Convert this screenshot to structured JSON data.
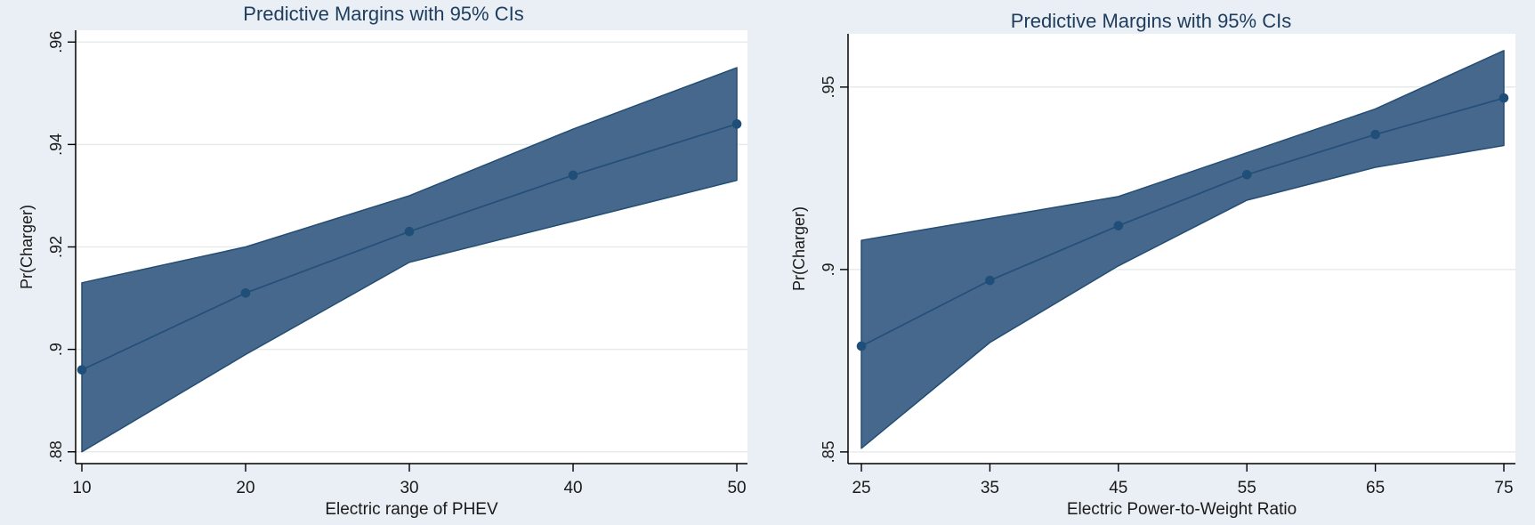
{
  "figure": {
    "description_note": "",
    "colors": {
      "background": "#e9eff4",
      "plot_background": "#ffffff",
      "gridline": "#e7ebec",
      "axis_line": "#000000",
      "tick_label": "#1a1a1a",
      "axis_title": "#1a1a1a",
      "chart_title": "#1e3c5e",
      "ci_band_fill": "#46688c",
      "ci_band_edge": "#244d74",
      "margin_line": "#234f7a",
      "marker_fill": "#1f4e79"
    }
  },
  "chart_data": [
    {
      "type": "line",
      "title": "Predictive Margins with 95% CIs",
      "xlabel": "Electric range of PHEV",
      "ylabel": "Pr(Charger)",
      "x": [
        10,
        20,
        30,
        40,
        50
      ],
      "series": [
        {
          "name": "Predictive margin",
          "values": [
            0.896,
            0.911,
            0.923,
            0.934,
            0.944
          ]
        },
        {
          "name": "95% CI lower",
          "values": [
            0.88,
            0.899,
            0.917,
            0.925,
            0.933
          ]
        },
        {
          "name": "95% CI upper",
          "values": [
            0.913,
            0.92,
            0.93,
            0.943,
            0.955
          ]
        }
      ],
      "xticks": {
        "values": [
          10,
          20,
          30,
          40,
          50
        ],
        "labels": [
          "10",
          "20",
          "30",
          "40",
          "50"
        ]
      },
      "yticks": {
        "values": [
          0.88,
          0.9,
          0.92,
          0.94,
          0.96
        ],
        "labels": [
          ".88",
          ".9",
          ".92",
          ".94",
          ".96"
        ]
      },
      "xlim": [
        9.62,
        50.65
      ],
      "ylim": [
        0.8777,
        0.9623
      ],
      "grid": "horizontal",
      "legend": "none"
    },
    {
      "type": "line",
      "title": "Predictive Margins with 95% CIs",
      "xlabel": "Electric Power-to-Weight Ratio",
      "ylabel": "Pr(Charger)",
      "x": [
        25,
        35,
        45,
        55,
        65,
        75
      ],
      "series": [
        {
          "name": "Predictive margin",
          "values": [
            0.879,
            0.897,
            0.912,
            0.926,
            0.937,
            0.947
          ]
        },
        {
          "name": "95% CI lower",
          "values": [
            0.851,
            0.88,
            0.901,
            0.919,
            0.928,
            0.934
          ]
        },
        {
          "name": "95% CI upper",
          "values": [
            0.908,
            0.914,
            0.92,
            0.932,
            0.944,
            0.96
          ]
        }
      ],
      "xticks": {
        "values": [
          25,
          35,
          45,
          55,
          65,
          75
        ],
        "labels": [
          "25",
          "35",
          "45",
          "55",
          "65",
          "75"
        ]
      },
      "yticks": {
        "values": [
          0.85,
          0.9,
          0.95
        ],
        "labels": [
          ".85",
          ".9",
          ".95"
        ]
      },
      "xlim": [
        23.96,
        75.9
      ],
      "ylim": [
        0.8468,
        0.9646
      ],
      "grid": "horizontal",
      "legend": "none"
    }
  ]
}
